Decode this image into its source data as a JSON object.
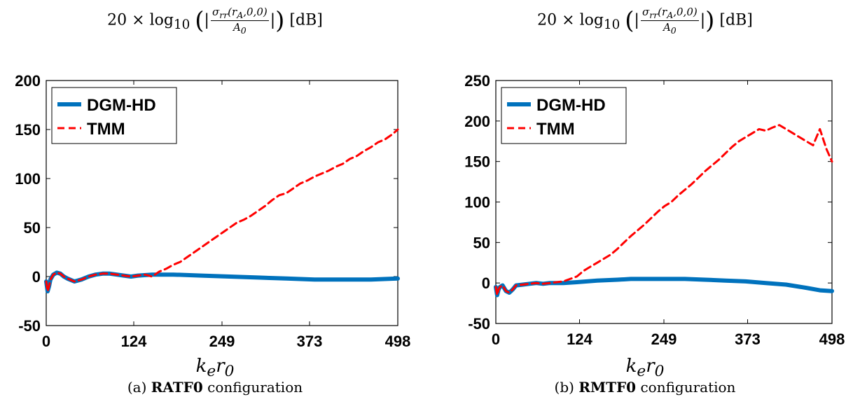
{
  "panels": [
    {
      "title": {
        "prefix": "20 × log",
        "sub": "10",
        "num": "σ",
        "num_sub": "rr",
        "num_rest": "(r",
        "num_sub2": "A",
        "num_end": ",0,0)",
        "den": "A",
        "den_sub": "0",
        "unit": "[dB]"
      },
      "caption": {
        "label": "(a)",
        "name": "RATF0",
        "suffix": "configuration"
      },
      "xlabel": "k",
      "xlabel_sub1": "e",
      "xlabel_mid": "r",
      "xlabel_sub2": "0"
    },
    {
      "title": {
        "prefix": "20 × log",
        "sub": "10",
        "num": "σ",
        "num_sub": "rr",
        "num_rest": "(r",
        "num_sub2": "A",
        "num_end": ",0,0)",
        "den": "A",
        "den_sub": "0",
        "unit": "[dB]"
      },
      "caption": {
        "label": "(b)",
        "name": "RMTF0",
        "suffix": "configuration"
      },
      "xlabel": "k",
      "xlabel_sub1": "e",
      "xlabel_mid": "r",
      "xlabel_sub2": "0"
    }
  ],
  "chart_data": [
    {
      "type": "line",
      "xlabel": "k_e r_0",
      "ylabel": "",
      "xlim": [
        0,
        498
      ],
      "ylim": [
        -50,
        200
      ],
      "xticks": [
        0,
        124,
        249,
        373,
        498
      ],
      "yticks": [
        -50,
        0,
        50,
        100,
        150,
        200
      ],
      "legend_position": "top-left",
      "grid": false,
      "series": [
        {
          "name": "DGM-HD",
          "color": "#0072BD",
          "style": "solid",
          "x": [
            0,
            2,
            4,
            6,
            10,
            15,
            20,
            25,
            30,
            40,
            50,
            60,
            70,
            80,
            90,
            100,
            110,
            120,
            130,
            150,
            180,
            220,
            260,
            300,
            340,
            380,
            420,
            460,
            498
          ],
          "y": [
            -5,
            -15,
            -10,
            -3,
            2,
            4,
            3,
            0,
            -2,
            -5,
            -3,
            0,
            2,
            3,
            3,
            2,
            1,
            0,
            1,
            2,
            2,
            1,
            0,
            -1,
            -2,
            -3,
            -3,
            -3,
            -2
          ]
        },
        {
          "name": "TMM",
          "color": "#FF0000",
          "style": "dashed",
          "x": [
            0,
            2,
            4,
            6,
            10,
            15,
            20,
            25,
            30,
            40,
            50,
            60,
            70,
            80,
            90,
            100,
            110,
            120,
            130,
            140,
            150,
            160,
            170,
            180,
            190,
            200,
            210,
            220,
            230,
            240,
            250,
            260,
            270,
            280,
            290,
            300,
            310,
            320,
            330,
            340,
            350,
            360,
            370,
            380,
            390,
            400,
            410,
            420,
            430,
            440,
            450,
            460,
            470,
            480,
            490,
            498
          ],
          "y": [
            -5,
            -15,
            -10,
            -3,
            2,
            4,
            3,
            0,
            -2,
            -5,
            -3,
            0,
            2,
            3,
            3,
            2,
            1,
            0,
            1,
            2,
            0,
            5,
            8,
            12,
            15,
            20,
            25,
            30,
            35,
            40,
            45,
            50,
            55,
            58,
            62,
            67,
            72,
            78,
            83,
            85,
            90,
            95,
            98,
            102,
            105,
            108,
            112,
            115,
            120,
            123,
            128,
            132,
            137,
            140,
            145,
            150
          ]
        }
      ]
    },
    {
      "type": "line",
      "xlabel": "k_e r_0",
      "ylabel": "",
      "xlim": [
        0,
        498
      ],
      "ylim": [
        -50,
        250
      ],
      "xticks": [
        0,
        124,
        249,
        373,
        498
      ],
      "yticks": [
        -50,
        0,
        50,
        100,
        150,
        200,
        250
      ],
      "legend_position": "top-left",
      "grid": false,
      "series": [
        {
          "name": "DGM-HD",
          "color": "#0072BD",
          "style": "solid",
          "x": [
            0,
            2,
            4,
            6,
            10,
            15,
            20,
            25,
            30,
            40,
            50,
            60,
            70,
            80,
            100,
            120,
            150,
            180,
            200,
            220,
            250,
            280,
            310,
            340,
            370,
            400,
            430,
            460,
            480,
            498
          ],
          "y": [
            -5,
            -15,
            -8,
            -5,
            -3,
            -10,
            -12,
            -8,
            -3,
            -2,
            -1,
            0,
            -1,
            0,
            0,
            1,
            3,
            4,
            5,
            5,
            5,
            5,
            4,
            3,
            2,
            0,
            -2,
            -6,
            -9,
            -10
          ]
        },
        {
          "name": "TMM",
          "color": "#FF0000",
          "style": "dashed",
          "x": [
            0,
            2,
            4,
            6,
            10,
            15,
            20,
            25,
            30,
            40,
            50,
            60,
            70,
            80,
            90,
            100,
            110,
            120,
            130,
            140,
            150,
            160,
            170,
            180,
            190,
            200,
            210,
            220,
            230,
            240,
            250,
            260,
            270,
            280,
            290,
            300,
            310,
            320,
            330,
            340,
            350,
            360,
            370,
            380,
            390,
            400,
            410,
            420,
            430,
            440,
            450,
            460,
            470,
            480,
            490,
            498
          ],
          "y": [
            -5,
            -15,
            -8,
            -5,
            -3,
            -10,
            -12,
            -8,
            -3,
            -2,
            -1,
            0,
            -1,
            0,
            1,
            2,
            5,
            8,
            15,
            20,
            25,
            30,
            35,
            42,
            50,
            58,
            65,
            72,
            80,
            88,
            95,
            100,
            108,
            115,
            122,
            130,
            138,
            145,
            152,
            160,
            168,
            175,
            180,
            185,
            190,
            188,
            192,
            195,
            190,
            185,
            180,
            175,
            170,
            190,
            165,
            150
          ]
        }
      ]
    }
  ]
}
